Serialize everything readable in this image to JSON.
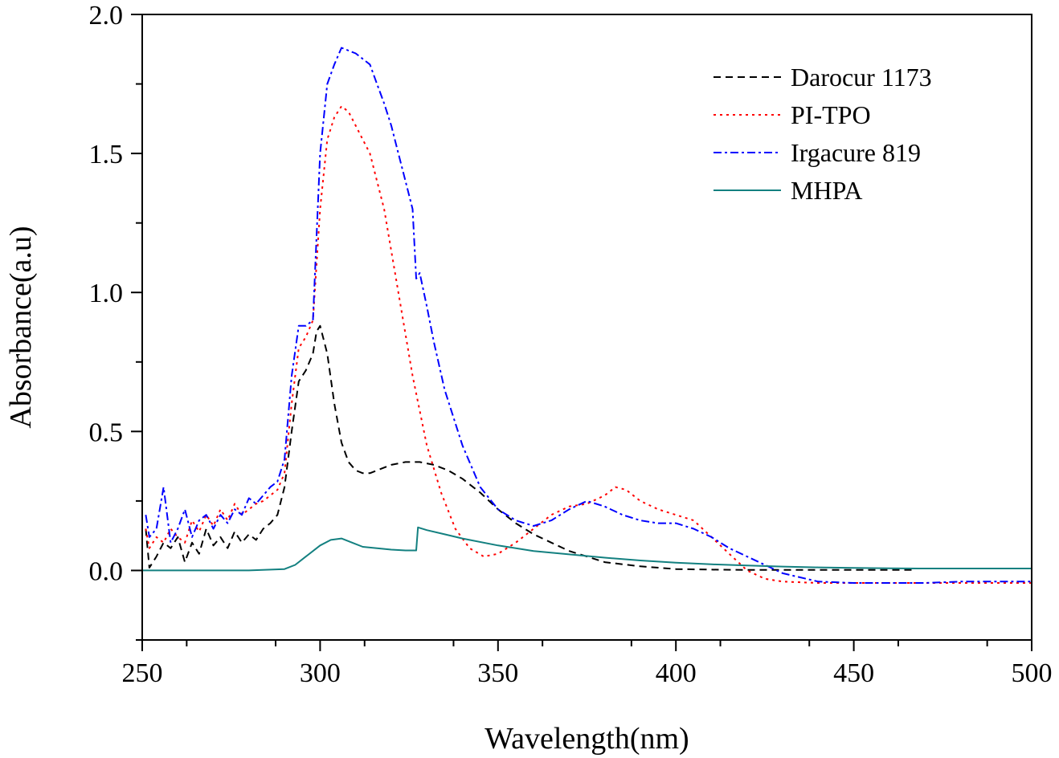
{
  "chart_data": {
    "type": "line",
    "title": "",
    "xlabel": "Wavelength(nm)",
    "ylabel": "Absorbance(a.u)",
    "xlim": [
      250,
      500
    ],
    "ylim": [
      -0.25,
      2.0
    ],
    "x_ticks": [
      250,
      300,
      350,
      400,
      450,
      500
    ],
    "x_tick_labels": [
      "250",
      "300",
      "350",
      "400",
      "450",
      "500"
    ],
    "y_ticks": [
      0.0,
      0.5,
      1.0,
      1.5,
      2.0
    ],
    "y_tick_labels": [
      "0.0",
      "0.5",
      "1.0",
      "1.5",
      "2.0"
    ],
    "grid": false,
    "legend_position": "top-right",
    "series": [
      {
        "name": "Darocur 1173",
        "color": "#000000",
        "dash": "dashed",
        "x": [
          251,
          252,
          254,
          256,
          258,
          260,
          262,
          264,
          266,
          268,
          270,
          272,
          274,
          276,
          278,
          280,
          282,
          284,
          286,
          288,
          290,
          292,
          294,
          296,
          298,
          299,
          300,
          302,
          304,
          306,
          308,
          310,
          312,
          314,
          316,
          318,
          320,
          324,
          328,
          332,
          336,
          340,
          345,
          350,
          355,
          360,
          365,
          370,
          375,
          380,
          390,
          400,
          410,
          420,
          430,
          440,
          450,
          460,
          467
        ],
        "y": [
          0.15,
          0.01,
          0.05,
          0.1,
          0.08,
          0.12,
          0.03,
          0.1,
          0.06,
          0.15,
          0.09,
          0.12,
          0.08,
          0.14,
          0.1,
          0.13,
          0.11,
          0.15,
          0.17,
          0.2,
          0.3,
          0.5,
          0.68,
          0.72,
          0.78,
          0.86,
          0.88,
          0.78,
          0.6,
          0.46,
          0.39,
          0.36,
          0.35,
          0.35,
          0.36,
          0.37,
          0.38,
          0.39,
          0.39,
          0.38,
          0.36,
          0.33,
          0.28,
          0.22,
          0.17,
          0.13,
          0.1,
          0.07,
          0.05,
          0.03,
          0.015,
          0.005,
          0.003,
          0.002,
          0.002,
          0.002,
          0.002,
          0.002,
          0.002
        ]
      },
      {
        "name": "PI-TPO",
        "color": "#ff0000",
        "dash": "dotted",
        "x": [
          251,
          252,
          254,
          256,
          258,
          260,
          262,
          264,
          266,
          268,
          270,
          272,
          274,
          276,
          278,
          280,
          282,
          284,
          286,
          288,
          290,
          292,
          294,
          296,
          298,
          300,
          302,
          304,
          306,
          308,
          310,
          312,
          314,
          318,
          322,
          326,
          330,
          334,
          338,
          342,
          346,
          350,
          355,
          360,
          365,
          370,
          375,
          380,
          383,
          386,
          390,
          395,
          400,
          405,
          410,
          415,
          420,
          425,
          430,
          440,
          450,
          460,
          470,
          480,
          490,
          500
        ],
        "y": [
          0.15,
          0.08,
          0.12,
          0.1,
          0.15,
          0.12,
          0.1,
          0.18,
          0.14,
          0.2,
          0.16,
          0.22,
          0.18,
          0.24,
          0.2,
          0.22,
          0.24,
          0.25,
          0.27,
          0.29,
          0.35,
          0.6,
          0.8,
          0.84,
          0.9,
          1.3,
          1.55,
          1.63,
          1.67,
          1.65,
          1.6,
          1.55,
          1.5,
          1.3,
          1.0,
          0.7,
          0.45,
          0.28,
          0.15,
          0.08,
          0.05,
          0.06,
          0.1,
          0.15,
          0.2,
          0.23,
          0.24,
          0.27,
          0.3,
          0.29,
          0.25,
          0.22,
          0.2,
          0.18,
          0.12,
          0.06,
          0.0,
          -0.03,
          -0.04,
          -0.045,
          -0.045,
          -0.045,
          -0.045,
          -0.045,
          -0.045,
          -0.045
        ]
      },
      {
        "name": "Irgacure 819",
        "color": "#0000ff",
        "dash": "dashdot",
        "x": [
          251,
          252,
          254,
          256,
          258,
          260,
          262,
          264,
          266,
          268,
          270,
          272,
          274,
          276,
          278,
          280,
          282,
          284,
          286,
          288,
          290,
          292,
          294,
          296,
          298,
          300,
          302,
          304,
          306,
          308,
          310,
          312,
          314,
          316,
          318,
          320,
          322,
          324,
          326,
          327,
          328,
          330,
          332,
          335,
          340,
          345,
          350,
          355,
          360,
          365,
          370,
          375,
          380,
          385,
          390,
          395,
          400,
          405,
          410,
          415,
          420,
          425,
          430,
          440,
          450,
          460,
          470,
          480,
          490,
          500
        ],
        "y": [
          0.2,
          0.12,
          0.15,
          0.3,
          0.1,
          0.15,
          0.22,
          0.12,
          0.18,
          0.2,
          0.15,
          0.2,
          0.17,
          0.22,
          0.2,
          0.26,
          0.24,
          0.27,
          0.3,
          0.32,
          0.4,
          0.7,
          0.88,
          0.88,
          0.9,
          1.5,
          1.75,
          1.82,
          1.88,
          1.87,
          1.86,
          1.84,
          1.82,
          1.75,
          1.68,
          1.6,
          1.5,
          1.4,
          1.3,
          1.05,
          1.07,
          0.95,
          0.82,
          0.65,
          0.45,
          0.3,
          0.22,
          0.18,
          0.16,
          0.18,
          0.22,
          0.25,
          0.23,
          0.2,
          0.18,
          0.17,
          0.17,
          0.15,
          0.12,
          0.08,
          0.05,
          0.02,
          -0.01,
          -0.04,
          -0.045,
          -0.045,
          -0.045,
          -0.04,
          -0.04,
          -0.04
        ]
      },
      {
        "name": "MHPA",
        "color": "#138080",
        "dash": "solid",
        "x": [
          250,
          260,
          270,
          280,
          290,
          293,
          296,
          300,
          303,
          306,
          309,
          312,
          316,
          320,
          324,
          327,
          327.5,
          330,
          335,
          340,
          350,
          360,
          370,
          380,
          390,
          400,
          410,
          420,
          430,
          440,
          450,
          460,
          470,
          480,
          490,
          500
        ],
        "y": [
          0.0,
          0.0,
          0.0,
          0.0,
          0.005,
          0.02,
          0.05,
          0.09,
          0.11,
          0.115,
          0.1,
          0.085,
          0.08,
          0.075,
          0.072,
          0.072,
          0.155,
          0.145,
          0.13,
          0.115,
          0.09,
          0.07,
          0.058,
          0.046,
          0.036,
          0.028,
          0.022,
          0.018,
          0.014,
          0.011,
          0.009,
          0.008,
          0.007,
          0.007,
          0.007,
          0.007
        ]
      }
    ]
  }
}
